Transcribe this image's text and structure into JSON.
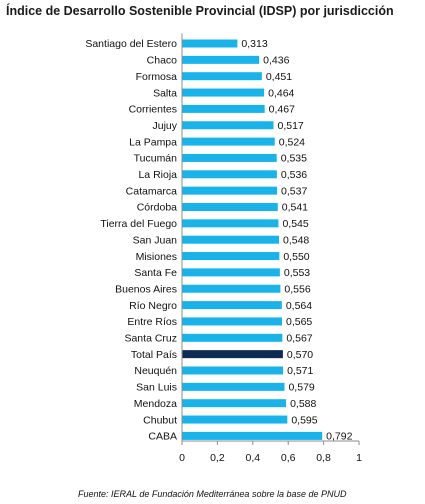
{
  "chart_data": {
    "type": "bar",
    "orientation": "horizontal",
    "title": "Índice de Desarrollo Sostenible Provincial (IDSP) por jurisdicción",
    "source": "Fuente: IERAL de Fundación Mediterránea sobre la base de PNUD",
    "categories": [
      "Santiago del Estero",
      "Chaco",
      "Formosa",
      "Salta",
      "Corrientes",
      "Jujuy",
      "La Pampa",
      "Tucumán",
      "La Rioja",
      "Catamarca",
      "Córdoba",
      "Tierra del Fuego",
      "San Juan",
      "Misiones",
      "Santa Fe",
      "Buenos Aires",
      "Río Negro",
      "Entre Ríos",
      "Santa Cruz",
      "Total País",
      "Neuquén",
      "San Luis",
      "Mendoza",
      "Chubut",
      "CABA"
    ],
    "values": [
      0.313,
      0.436,
      0.451,
      0.464,
      0.467,
      0.517,
      0.524,
      0.535,
      0.536,
      0.537,
      0.541,
      0.545,
      0.548,
      0.55,
      0.553,
      0.556,
      0.564,
      0.565,
      0.567,
      0.57,
      0.571,
      0.579,
      0.588,
      0.595,
      0.792
    ],
    "value_labels": [
      "0,313",
      "0,436",
      "0,451",
      "0,464",
      "0,467",
      "0,517",
      "0,524",
      "0,535",
      "0,536",
      "0,537",
      "0,541",
      "0,545",
      "0,548",
      "0,550",
      "0,553",
      "0,556",
      "0,564",
      "0,565",
      "0,567",
      "0,570",
      "0,571",
      "0,579",
      "0,588",
      "0,595",
      "0,792"
    ],
    "highlight_category": "Total País",
    "xlim": [
      0,
      1
    ],
    "xticks": [
      0,
      0.2,
      0.4,
      0.6,
      0.8,
      1
    ],
    "xtick_labels": [
      "0",
      "0,2",
      "0,4",
      "0,6",
      "0,8",
      "1"
    ],
    "grid": false,
    "colors": {
      "bar": "#19b3ea",
      "highlight": "#0d2a52",
      "axis": "#8c8c8c",
      "text": "#111111"
    }
  }
}
